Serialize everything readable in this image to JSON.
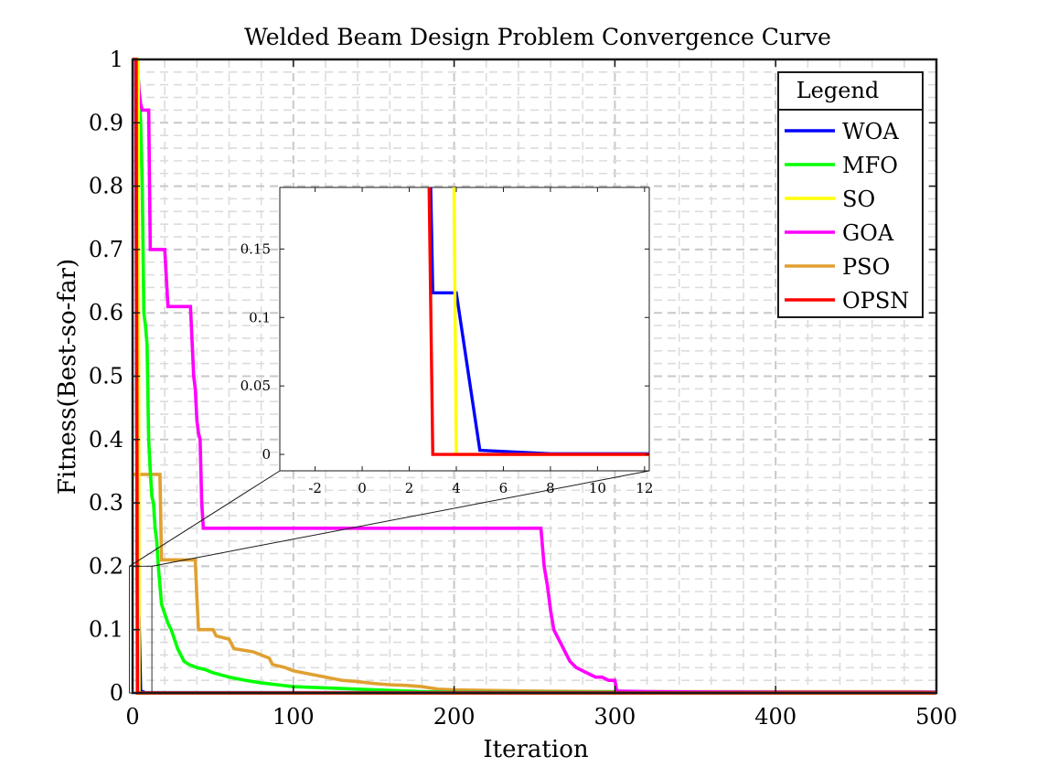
{
  "chart_data": {
    "type": "line",
    "title": "Welded Beam Design Problem Convergence Curve",
    "xlabel": "Iteration",
    "ylabel": "Fitness(Best-so-far)",
    "xlim": [
      0,
      500
    ],
    "ylim": [
      0,
      1
    ],
    "xticks": [
      "0",
      "100",
      "200",
      "300",
      "400",
      "500"
    ],
    "yticks": [
      "0",
      "0.1",
      "0.2",
      "0.3",
      "0.4",
      "0.5",
      "0.6",
      "0.7",
      "0.8",
      "0.9",
      "1"
    ],
    "grid": true,
    "legend": {
      "title": "Legend",
      "placement": "top-right"
    },
    "series": [
      {
        "name": "WOA",
        "color": "#0000ff",
        "x": [
          0,
          2,
          3,
          4,
          5,
          8,
          500
        ],
        "y": [
          1,
          1,
          0.118,
          0.118,
          0.003,
          0.0005,
          0.0005
        ]
      },
      {
        "name": "MFO",
        "color": "#00ff00",
        "x": [
          0,
          3,
          4,
          5,
          6,
          7,
          8,
          9,
          10,
          11,
          12,
          13,
          14,
          15,
          16,
          17,
          18,
          20,
          22,
          24,
          26,
          28,
          30,
          32,
          35,
          40,
          45,
          50,
          60,
          70,
          80,
          90,
          100,
          120,
          140,
          160,
          180,
          200,
          500
        ],
        "y": [
          1,
          1,
          0.95,
          0.9,
          0.8,
          0.6,
          0.58,
          0.55,
          0.4,
          0.35,
          0.31,
          0.3,
          0.26,
          0.24,
          0.2,
          0.17,
          0.14,
          0.125,
          0.11,
          0.1,
          0.085,
          0.07,
          0.06,
          0.05,
          0.045,
          0.04,
          0.037,
          0.032,
          0.025,
          0.02,
          0.016,
          0.013,
          0.01,
          0.008,
          0.006,
          0.004,
          0.002,
          0.001,
          0.001
        ]
      },
      {
        "name": "SO",
        "color": "#ffff00",
        "x": [
          0,
          3.5,
          4,
          500
        ],
        "y": [
          1,
          1,
          0.0,
          0.0
        ]
      },
      {
        "name": "GOA",
        "color": "#ff00ff",
        "x": [
          0,
          2,
          3,
          4,
          5,
          6,
          8,
          10,
          11,
          12,
          20,
          22,
          36,
          38,
          39,
          40,
          41,
          42,
          43,
          44,
          254,
          256,
          258,
          260,
          262,
          264,
          268,
          272,
          276,
          280,
          284,
          288,
          292,
          296,
          300,
          301,
          302,
          320,
          350,
          400,
          450,
          500
        ],
        "y": [
          1,
          1,
          0.99,
          0.95,
          0.93,
          0.92,
          0.92,
          0.92,
          0.7,
          0.7,
          0.7,
          0.61,
          0.61,
          0.5,
          0.48,
          0.43,
          0.41,
          0.4,
          0.3,
          0.26,
          0.26,
          0.2,
          0.17,
          0.13,
          0.1,
          0.09,
          0.07,
          0.05,
          0.04,
          0.035,
          0.03,
          0.025,
          0.025,
          0.02,
          0.02,
          0.005,
          0.003,
          0.002,
          0.0015,
          0.001,
          0.001,
          0.001
        ]
      },
      {
        "name": "PSO",
        "color": "#e0a030",
        "x": [
          0,
          17,
          18,
          39,
          40,
          41,
          50,
          52,
          60,
          63,
          75,
          80,
          85,
          87,
          95,
          100,
          110,
          120,
          130,
          140,
          150,
          160,
          170,
          180,
          190,
          200,
          220,
          250,
          300,
          490,
          500
        ],
        "y": [
          0.345,
          0.345,
          0.21,
          0.21,
          0.15,
          0.1,
          0.1,
          0.09,
          0.085,
          0.07,
          0.065,
          0.06,
          0.055,
          0.045,
          0.04,
          0.035,
          0.03,
          0.025,
          0.02,
          0.018,
          0.015,
          0.013,
          0.012,
          0.01,
          0.006,
          0.005,
          0.004,
          0.003,
          0.002,
          0.002,
          0.0015
        ]
      },
      {
        "name": "OPSN",
        "color": "#ff0000",
        "x": [
          0,
          2.2,
          3,
          500
        ],
        "y": [
          1,
          1,
          0.0,
          0.0
        ]
      }
    ],
    "inset": {
      "xlim": [
        -3.5,
        12.2
      ],
      "ylim": [
        -0.012,
        0.195
      ],
      "xticks": [
        "-2",
        "0",
        "2",
        "4",
        "6",
        "8",
        "10",
        "12"
      ],
      "yticks": [
        "0",
        "0.05",
        "0.1",
        "0.15"
      ],
      "source_region": {
        "xlim": [
          -2,
          12
        ],
        "ylim": [
          0,
          0.2
        ]
      }
    }
  }
}
